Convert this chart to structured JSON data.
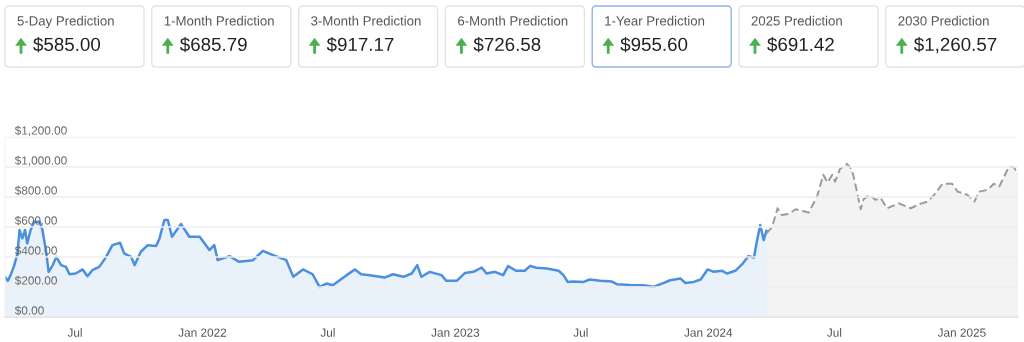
{
  "chart_data": [
    {
      "type": "other",
      "categories": [
        "5-Day Prediction",
        "1-Month Prediction",
        "3-Month Prediction",
        "6-Month Prediction",
        "1-Year Prediction",
        "2025 Prediction",
        "2030 Prediction"
      ],
      "annotations": [
        "$585.00",
        "$685.79",
        "$917.17",
        "$726.58",
        "$955.60",
        "$691.42",
        "$1,260.57"
      ],
      "colors": [
        "#e3e3e3",
        "#e3e3e3",
        "#e3e3e3",
        "#e3e3e3",
        "#8fb4ea",
        "#e3e3e3",
        "#e3e3e3"
      ]
    },
    {
      "type": "area",
      "xlim": [
        "2021-03-22",
        "2025-03-23"
      ],
      "xticks": [
        {
          "value": "2021-07-01",
          "label": "Jul"
        },
        {
          "value": "2022-01-01",
          "label": "Jan 2022"
        },
        {
          "value": "2022-07-01",
          "label": "Jul"
        },
        {
          "value": "2023-01-01",
          "label": "Jan 2023"
        },
        {
          "value": "2023-07-01",
          "label": "Jul"
        },
        {
          "value": "2024-01-01",
          "label": "Jan 2024"
        },
        {
          "value": "2024-07-01",
          "label": "Jul"
        },
        {
          "value": "2025-01-01",
          "label": "Jan 2025"
        }
      ],
      "ylim": [
        0,
        1200
      ],
      "yticks": [
        {
          "value": 0,
          "label": "$0.00"
        },
        {
          "value": 200,
          "label": "$200.00"
        },
        {
          "value": 400,
          "label": "$400.00"
        },
        {
          "value": 600,
          "label": "$600.00"
        },
        {
          "value": 800,
          "label": "$800.00"
        },
        {
          "value": 1000,
          "label": "$1,000.00"
        },
        {
          "value": 1200,
          "label": "$1,200.00"
        }
      ],
      "grid": "y",
      "series": [
        {
          "type": "area",
          "color": "#4a8fe0",
          "line_style": "solid",
          "x": [
            "2021-03-22",
            "2021-03-26",
            "2021-03-30",
            "2021-04-04",
            "2021-04-09",
            "2021-04-12",
            "2021-04-16",
            "2021-04-20",
            "2021-04-23",
            "2021-04-28",
            "2021-05-03",
            "2021-05-11",
            "2021-05-15",
            "2021-05-20",
            "2021-05-24",
            "2021-05-30",
            "2021-06-04",
            "2021-06-11",
            "2021-06-18",
            "2021-06-23",
            "2021-07-02",
            "2021-07-12",
            "2021-07-19",
            "2021-07-26",
            "2021-08-05",
            "2021-08-15",
            "2021-08-24",
            "2021-09-04",
            "2021-09-10",
            "2021-09-20",
            "2021-09-25",
            "2021-10-04",
            "2021-10-14",
            "2021-10-26",
            "2021-10-31",
            "2021-11-07",
            "2021-11-12",
            "2021-11-18",
            "2021-12-01",
            "2021-12-13",
            "2021-12-28",
            "2022-01-11",
            "2022-01-18",
            "2022-01-23",
            "2022-02-09",
            "2022-02-23",
            "2022-03-15",
            "2022-03-29",
            "2022-04-13",
            "2022-05-02",
            "2022-05-12",
            "2022-05-26",
            "2022-06-09",
            "2022-06-19",
            "2022-06-29",
            "2022-07-08",
            "2022-07-18",
            "2022-07-28",
            "2022-08-09",
            "2022-08-18",
            "2022-08-30",
            "2022-09-14",
            "2022-09-21",
            "2022-10-03",
            "2022-10-18",
            "2022-10-30",
            "2022-11-07",
            "2022-11-13",
            "2022-11-25",
            "2022-12-12",
            "2022-12-19",
            "2023-01-03",
            "2023-01-15",
            "2023-01-27",
            "2023-02-08",
            "2023-02-15",
            "2023-02-27",
            "2023-03-11",
            "2023-03-18",
            "2023-03-30",
            "2023-04-11",
            "2023-04-19",
            "2023-04-28",
            "2023-05-13",
            "2023-05-30",
            "2023-06-06",
            "2023-06-12",
            "2023-06-20",
            "2023-07-05",
            "2023-07-14",
            "2023-07-29",
            "2023-08-15",
            "2023-08-22",
            "2023-09-10",
            "2023-09-29",
            "2023-10-14",
            "2023-10-26",
            "2023-11-07",
            "2023-11-22",
            "2023-11-29",
            "2023-12-11",
            "2023-12-21",
            "2023-12-31",
            "2024-01-09",
            "2024-01-21",
            "2024-01-28",
            "2024-02-09",
            "2024-02-19",
            "2024-02-28",
            "2024-03-07",
            "2024-03-11",
            "2024-03-16",
            "2024-03-21",
            "2024-03-25"
          ],
          "values": [
            267,
            241,
            279,
            339,
            424,
            580,
            524,
            580,
            491,
            580,
            635,
            635,
            580,
            446,
            301,
            346,
            401,
            346,
            334,
            285,
            290,
            317,
            272,
            312,
            334,
            401,
            479,
            495,
            424,
            401,
            346,
            435,
            479,
            473,
            524,
            647,
            647,
            535,
            620,
            535,
            535,
            446,
            479,
            379,
            406,
            368,
            379,
            441,
            412,
            379,
            268,
            317,
            285,
            201,
            223,
            212,
            245,
            279,
            317,
            285,
            279,
            268,
            263,
            285,
            268,
            290,
            346,
            268,
            301,
            279,
            241,
            241,
            294,
            301,
            330,
            290,
            301,
            279,
            339,
            308,
            308,
            341,
            328,
            323,
            308,
            279,
            234,
            236,
            234,
            250,
            241,
            236,
            219,
            214,
            212,
            201,
            223,
            245,
            256,
            227,
            234,
            250,
            317,
            301,
            308,
            290,
            308,
            352,
            406,
            397,
            502,
            613,
            513,
            575
          ]
        },
        {
          "type": "area",
          "color": "#9a9a9a",
          "line_style": "dashed",
          "x": [
            "2024-03-25",
            "2024-04-02",
            "2024-04-10",
            "2024-04-16",
            "2024-04-26",
            "2024-05-06",
            "2024-05-15",
            "2024-05-25",
            "2024-06-06",
            "2024-06-15",
            "2024-06-21",
            "2024-06-28",
            "2024-07-02",
            "2024-07-09",
            "2024-07-19",
            "2024-07-26",
            "2024-07-31",
            "2024-08-08",
            "2024-08-12",
            "2024-08-21",
            "2024-08-29",
            "2024-09-06",
            "2024-09-15",
            "2024-10-02",
            "2024-10-19",
            "2024-11-02",
            "2024-11-12",
            "2024-11-22",
            "2024-12-04",
            "2024-12-18",
            "2024-12-26",
            "2025-01-09",
            "2025-01-19",
            "2025-01-26",
            "2025-02-07",
            "2025-02-16",
            "2025-02-24",
            "2025-03-10",
            "2025-03-17",
            "2025-03-23"
          ],
          "values": [
            557,
            598,
            725,
            680,
            687,
            718,
            709,
            696,
            803,
            948,
            896,
            948,
            903,
            986,
            1021,
            986,
            892,
            718,
            785,
            814,
            781,
            792,
            725,
            758,
            725,
            754,
            769,
            814,
            888,
            888,
            836,
            814,
            769,
            836,
            847,
            888,
            870,
            1003,
            999,
            954
          ]
        }
      ]
    }
  ]
}
